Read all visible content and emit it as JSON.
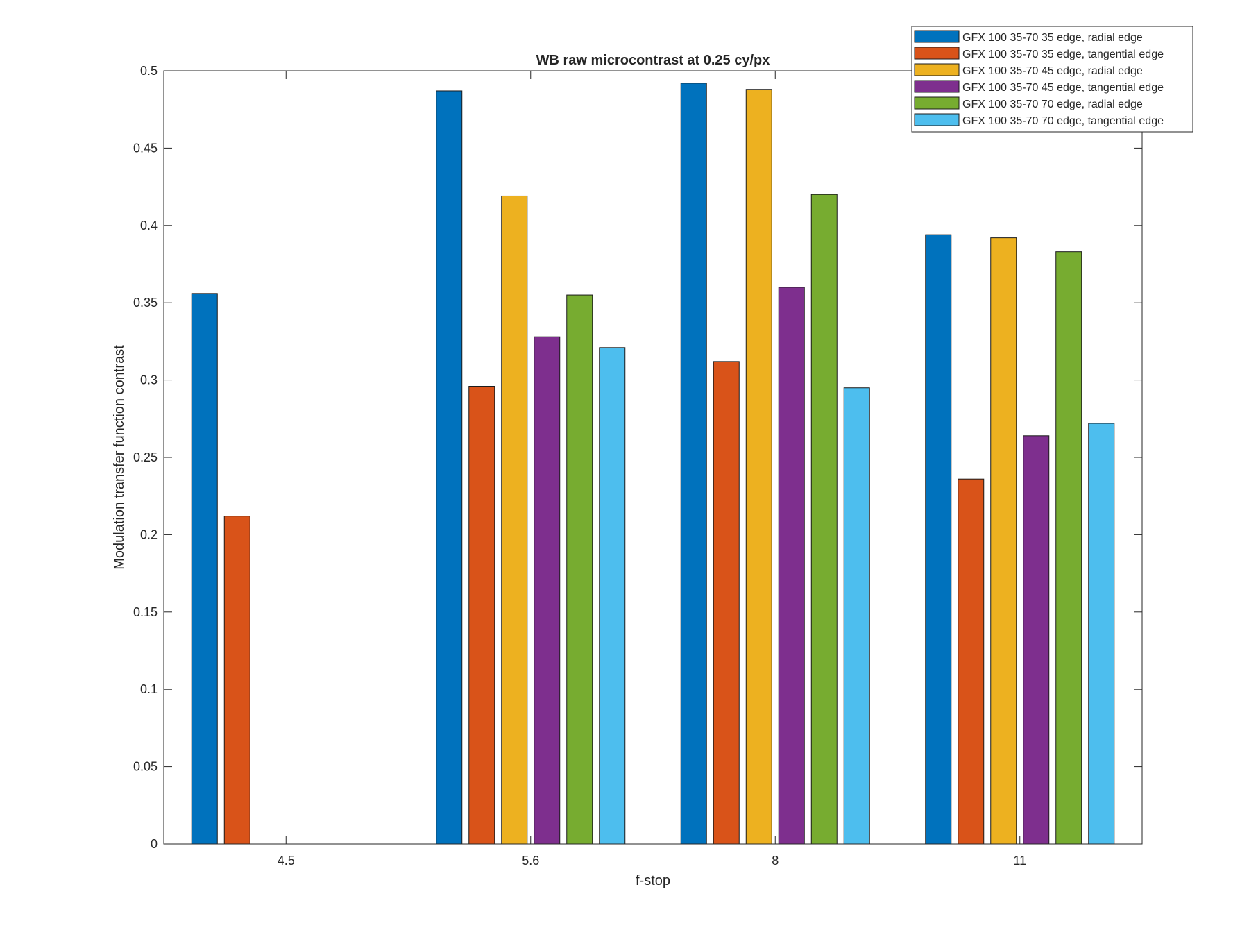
{
  "chart_data": {
    "type": "bar",
    "title": "WB raw  microcontrast at 0.25 cy/px",
    "xlabel": "f-stop",
    "ylabel": "Modulation transfer function contrast",
    "categories": [
      "4.5",
      "5.6",
      "8",
      "11"
    ],
    "ylim": [
      0,
      0.5
    ],
    "yticks": [
      "0",
      "0.05",
      "0.1",
      "0.15",
      "0.2",
      "0.25",
      "0.3",
      "0.35",
      "0.4",
      "0.45",
      "0.5"
    ],
    "legend_position": "top-right",
    "grid": false,
    "series": [
      {
        "name": "GFX 100 35-70 35 edge, radial edge",
        "color": "#0072BD",
        "values": [
          0.356,
          0.487,
          0.492,
          0.394
        ]
      },
      {
        "name": "GFX 100 35-70 35 edge, tangential edge",
        "color": "#D95319",
        "values": [
          0.212,
          0.296,
          0.312,
          0.236
        ]
      },
      {
        "name": "GFX 100 35-70 45 edge, radial edge",
        "color": "#EDB120",
        "values": [
          null,
          0.419,
          0.488,
          0.392
        ]
      },
      {
        "name": "GFX 100 35-70 45 edge, tangential edge",
        "color": "#7E2F8E",
        "values": [
          null,
          0.328,
          0.36,
          0.264
        ]
      },
      {
        "name": "GFX 100 35-70 70 edge, radial edge",
        "color": "#77AC30",
        "values": [
          null,
          0.355,
          0.42,
          0.383
        ]
      },
      {
        "name": "GFX 100 35-70 70 edge, tangential edge",
        "color": "#4DBEEE",
        "values": [
          null,
          0.321,
          0.295,
          0.272
        ]
      }
    ]
  }
}
